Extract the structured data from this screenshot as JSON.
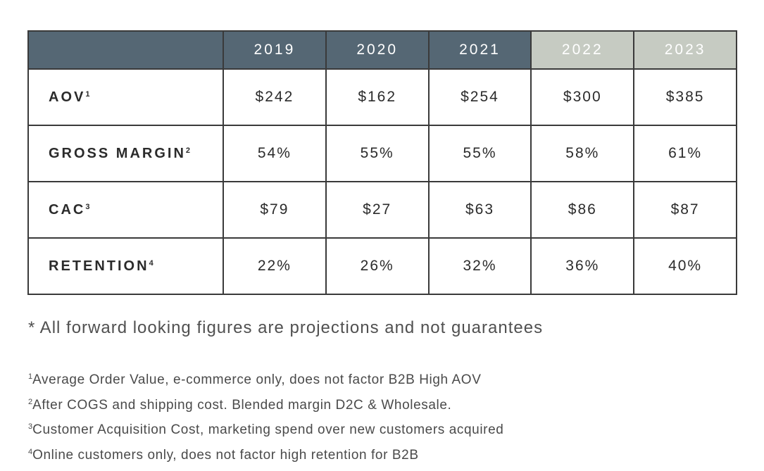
{
  "table": {
    "columns": [
      {
        "label": "2019",
        "status": "actual"
      },
      {
        "label": "2020",
        "status": "actual"
      },
      {
        "label": "2021",
        "status": "actual"
      },
      {
        "label": "2022",
        "status": "projected"
      },
      {
        "label": "2023",
        "status": "projected"
      }
    ],
    "rows": [
      {
        "label": "AOV",
        "note": "1",
        "values": [
          "$242",
          "$162",
          "$254",
          "$300",
          "$385"
        ]
      },
      {
        "label": "GROSS MARGIN",
        "note": "2",
        "values": [
          "54%",
          "55%",
          "55%",
          "58%",
          "61%"
        ]
      },
      {
        "label": "CAC",
        "note": "3",
        "values": [
          "$79",
          "$27",
          "$63",
          "$86",
          "$87"
        ]
      },
      {
        "label": "RETENTION",
        "note": "4",
        "values": [
          "22%",
          "26%",
          "32%",
          "36%",
          "40%"
        ]
      }
    ]
  },
  "colors": {
    "header_actual": "#556774",
    "header_projected": "#c6cbc2",
    "border": "#3a3a3a"
  },
  "disclaimer": "* All forward looking figures are projections and not guarantees",
  "footnotes": [
    {
      "mark": "1",
      "text": "Average Order Value, e-commerce only, does not factor B2B High AOV"
    },
    {
      "mark": "2",
      "text": "After COGS and shipping cost. Blended margin D2C & Wholesale."
    },
    {
      "mark": "3",
      "text": "Customer Acquisition Cost, marketing spend over new customers acquired"
    },
    {
      "mark": "4",
      "text": "Online customers only, does not factor high retention for B2B"
    }
  ]
}
